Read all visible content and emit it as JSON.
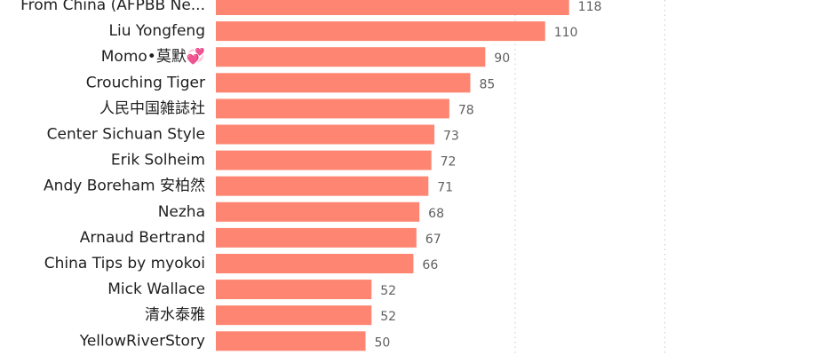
{
  "chart_data": {
    "type": "bar",
    "orientation": "horizontal",
    "title": "",
    "xlabel": "",
    "ylabel": "",
    "categories": [
      "From China (AFPBB Ne...",
      "Liu Yongfeng",
      "Momo•莫默💞",
      "Crouching Tiger",
      "人民中国雑誌社",
      "Center Sichuan Style",
      "Erik Solheim",
      "Andy Boreham 安柏然",
      "Nezha",
      "Arnaud Bertrand",
      "China Tips by myokoi",
      "Mick Wallace",
      "清水泰雅",
      "YellowRiverStory"
    ],
    "values": [
      118,
      110,
      90,
      85,
      78,
      73,
      72,
      71,
      68,
      67,
      66,
      52,
      52,
      50
    ],
    "value_labels": [
      "118",
      "110",
      "90",
      "85",
      "78",
      "73",
      "72",
      "71",
      "68",
      "67",
      "66",
      "52",
      "52",
      "50"
    ],
    "xlim": [
      0,
      160
    ],
    "grid_x": [
      100,
      150
    ],
    "grid": true,
    "legend": "none",
    "colors": {
      "bar": "#fd8571",
      "label": "#1f1f1f",
      "value": "#5f5f5f",
      "grid": "#c8c8c8"
    }
  }
}
